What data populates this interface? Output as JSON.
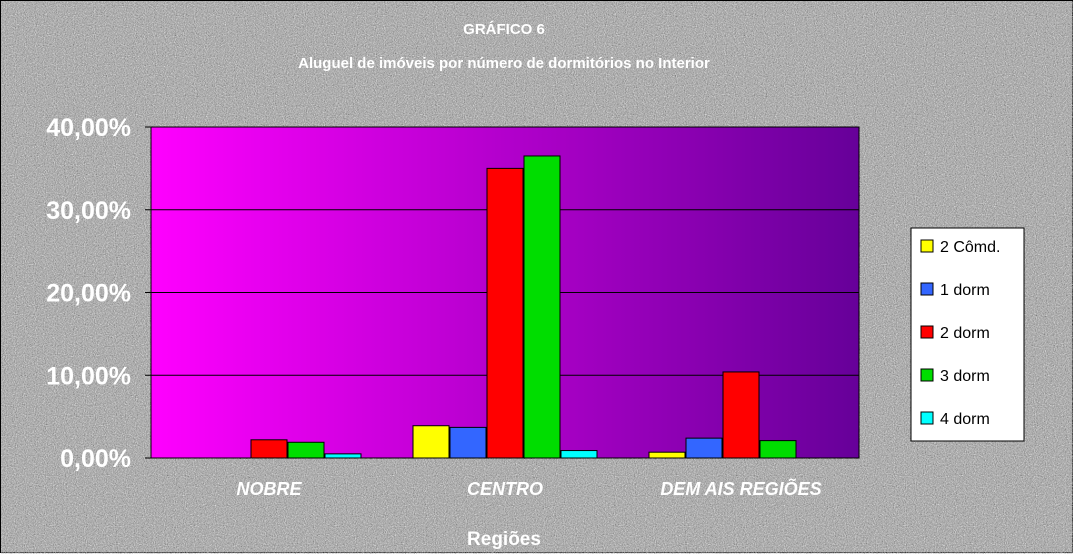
{
  "chart_data": {
    "type": "bar",
    "title": "GRÁFICO 6",
    "subtitle": "Aluguel de imóveis por número de dormitórios no Interior",
    "xlabel": "Regiões",
    "ylabel": "",
    "categories": [
      "NOBRE",
      "CENTRO",
      "DEM AIS REGIÕES"
    ],
    "ylim": [
      0,
      40
    ],
    "yticks": [
      0,
      10,
      20,
      30,
      40
    ],
    "ytick_labels": [
      "0,00%",
      "10,00%",
      "20,00%",
      "30,00%",
      "40,00%"
    ],
    "grid": true,
    "legend_position": "right",
    "series": [
      {
        "name": "2 Cômd.",
        "color": "#ffff00",
        "values": [
          0,
          3.9,
          0.7
        ]
      },
      {
        "name": "1 dorm",
        "color": "#3366ff",
        "values": [
          0,
          3.7,
          2.4
        ]
      },
      {
        "name": "2 dorm",
        "color": "#ff0000",
        "values": [
          2.2,
          35.0,
          10.4
        ]
      },
      {
        "name": "3 dorm",
        "color": "#00dd00",
        "values": [
          1.9,
          36.5,
          2.1
        ]
      },
      {
        "name": "4 dorm",
        "color": "#00ffff",
        "values": [
          0.5,
          0.9,
          0
        ]
      }
    ],
    "plot_gradient": [
      "#ff00ff",
      "#660099"
    ]
  }
}
